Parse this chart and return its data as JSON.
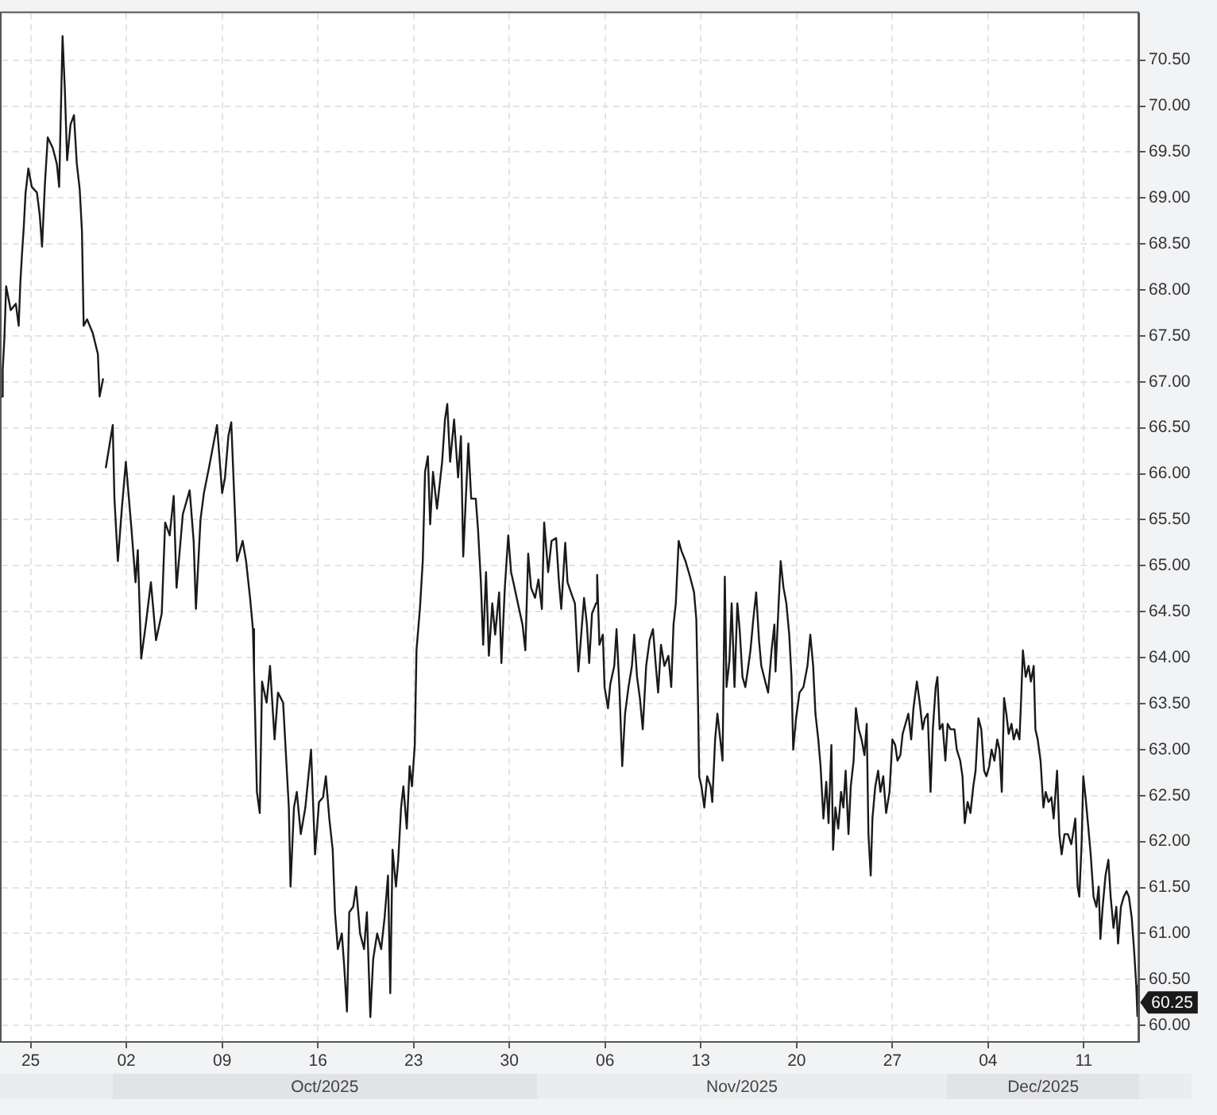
{
  "chart_data": {
    "type": "line",
    "x": [
      "2025-09-22T22:00",
      "2025-09-22T23:00",
      "2025-09-23T02:00",
      "2025-09-23T05:00",
      "2025-09-23T13:00",
      "2025-09-23T22:00",
      "2025-09-24T03:00",
      "2025-09-24T06:00",
      "2025-09-24T09:00",
      "2025-09-24T12:00",
      "2025-09-24T15:00",
      "2025-09-24T20:00",
      "2025-09-25T02:00",
      "2025-09-25T11:00",
      "2025-09-25T16:00",
      "2025-09-25T20:00",
      "2025-09-26T01:00",
      "2025-09-26T06:00",
      "2025-09-26T15:00",
      "2025-09-26T22:00",
      "2025-09-27T02:00",
      "2025-09-27T08:00",
      "2025-09-27T12:00",
      "2025-09-27T16:00",
      "2025-09-27T22:00",
      "2025-09-28T04:00",
      "2025-09-28T09:00",
      "2025-09-28T14:00",
      "2025-09-28T18:00",
      "2025-09-28T21:00",
      "2025-09-29T03:00",
      "2025-09-29T13:00",
      "2025-09-29T22:00",
      "2025-09-30T01:00",
      "2025-09-30T07:00",
      "2025-09-30T10:00",
      "2025-09-30T12:00",
      "2025-10-01T00:00",
      "2025-10-01T03:00",
      "2025-10-01T09:00",
      "2025-10-01T16:00",
      "2025-10-01T23:00",
      "2025-10-02T09:00",
      "2025-10-02T16:00",
      "2025-10-02T20:00",
      "2025-10-03T02:00",
      "2025-10-03T10:00",
      "2025-10-03T19:00",
      "2025-10-04T04:00",
      "2025-10-04T14:00",
      "2025-10-04T20:00",
      "2025-10-05T04:00",
      "2025-10-05T11:00",
      "2025-10-05T16:00",
      "2025-10-06T03:00",
      "2025-10-06T15:00",
      "2025-10-06T22:00",
      "2025-10-07T02:00",
      "2025-10-07T10:00",
      "2025-10-07T16:00",
      "2025-10-08T01:00",
      "2025-10-08T08:00",
      "2025-10-08T15:00",
      "2025-10-09T00:00",
      "2025-10-09T05:00",
      "2025-10-09T11:00",
      "2025-10-09T16:00",
      "2025-10-09T21:00",
      "2025-10-10T02:00",
      "2025-10-10T12:00",
      "2025-10-10T18:00",
      "2025-10-11T01:00",
      "2025-10-11T06:00",
      "2025-10-11T08:00",
      "2025-10-11T13:00",
      "2025-10-11T18:00",
      "2025-10-11T22:00",
      "2025-10-12T06:00",
      "2025-10-12T12:00",
      "2025-10-12T20:00",
      "2025-10-13T02:00",
      "2025-10-13T11:00",
      "2025-10-13T16:00",
      "2025-10-13T21:00",
      "2025-10-14T00:00",
      "2025-10-14T06:00",
      "2025-10-14T11:00",
      "2025-10-14T18:00",
      "2025-10-15T02:00",
      "2025-10-15T12:00",
      "2025-10-15T19:00",
      "2025-10-16T02:00",
      "2025-10-16T09:00",
      "2025-10-16T14:00",
      "2025-10-16T20:00",
      "2025-10-17T02:00",
      "2025-10-17T06:00",
      "2025-10-17T11:00",
      "2025-10-17T18:00",
      "2025-10-17T22:00",
      "2025-10-18T03:00",
      "2025-10-18T07:00",
      "2025-10-18T14:00",
      "2025-10-18T19:00",
      "2025-10-19T02:00",
      "2025-10-19T09:00",
      "2025-10-19T14:00",
      "2025-10-19T20:00",
      "2025-10-20T01:00",
      "2025-10-20T08:00",
      "2025-10-20T15:00",
      "2025-10-20T21:00",
      "2025-10-21T03:00",
      "2025-10-21T07:00",
      "2025-10-21T11:00",
      "2025-10-21T17:00",
      "2025-10-21T21:00",
      "2025-10-22T02:00",
      "2025-10-22T06:00",
      "2025-10-22T12:00",
      "2025-10-22T17:00",
      "2025-10-22T21:00",
      "2025-10-23T02:00",
      "2025-10-23T05:00",
      "2025-10-23T11:00",
      "2025-10-23T16:00",
      "2025-10-23T20:00",
      "2025-10-24T01:00",
      "2025-10-24T05:00",
      "2025-10-24T10:00",
      "2025-10-24T17:00",
      "2025-10-25T02:00",
      "2025-10-25T07:00",
      "2025-10-25T11:00",
      "2025-10-25T16:00",
      "2025-10-25T23:00",
      "2025-10-26T06:00",
      "2025-10-26T11:00",
      "2025-10-26T15:00",
      "2025-10-26T20:00",
      "2025-10-27T00:00",
      "2025-10-27T05:00",
      "2025-10-27T13:00",
      "2025-10-27T17:00",
      "2025-10-27T22:00",
      "2025-10-28T02:00",
      "2025-10-28T07:00",
      "2025-10-28T12:00",
      "2025-10-28T18:00",
      "2025-10-28T23:00",
      "2025-10-29T06:00",
      "2025-10-29T10:00",
      "2025-10-29T16:00",
      "2025-10-29T22:00",
      "2025-10-30T03:00",
      "2025-10-30T07:00",
      "2025-10-30T17:00",
      "2025-10-30T23:00",
      "2025-10-31T04:00",
      "2025-10-31T09:00",
      "2025-10-31T14:00",
      "2025-10-31T21:00",
      "2025-11-01T03:00",
      "2025-11-01T09:00",
      "2025-11-01T13:00",
      "2025-11-01T20:00",
      "2025-11-02T02:00",
      "2025-11-02T10:00",
      "2025-11-02T15:00",
      "2025-11-02T19:00",
      "2025-11-03T02:00",
      "2025-11-03T06:00",
      "2025-11-03T12:00",
      "2025-11-03T19:00",
      "2025-11-04T01:00",
      "2025-11-04T06:00",
      "2025-11-04T11:00",
      "2025-11-04T16:00",
      "2025-11-04T20:00",
      "2025-11-05T01:00",
      "2025-11-05T08:00",
      "2025-11-05T10:00",
      "2025-11-05T14:00",
      "2025-11-05T20:00",
      "2025-11-05T23:00",
      "2025-11-06T05:00",
      "2025-11-06T09:00",
      "2025-11-06T16:00",
      "2025-11-06T20:00",
      "2025-11-07T01:00",
      "2025-11-07T06:00",
      "2025-11-07T11:00",
      "2025-11-07T17:00",
      "2025-11-07T23:00",
      "2025-11-08T03:00",
      "2025-11-08T08:00",
      "2025-11-08T13:00",
      "2025-11-08T18:00",
      "2025-11-09T00:00",
      "2025-11-09T06:00",
      "2025-11-09T12:00",
      "2025-11-09T17:00",
      "2025-11-09T21:00",
      "2025-11-10T02:00",
      "2025-11-10T08:00",
      "2025-11-10T15:00",
      "2025-11-10T20:00",
      "2025-11-11T00:00",
      "2025-11-11T04:00",
      "2025-11-11T09:00",
      "2025-11-11T14:00",
      "2025-11-11T21:00",
      "2025-11-12T05:00",
      "2025-11-12T12:00",
      "2025-11-12T16:00",
      "2025-11-12T19:00",
      "2025-11-12T21:00",
      "2025-11-13T01:00",
      "2025-11-13T06:00",
      "2025-11-13T11:00",
      "2025-11-13T17:00",
      "2025-11-13T20:00",
      "2025-11-14T01:00",
      "2025-11-14T05:00",
      "2025-11-14T10:00",
      "2025-11-14T14:00",
      "2025-11-14T18:00",
      "2025-11-14T21:00",
      "2025-11-15T02:00",
      "2025-11-15T06:00",
      "2025-11-15T11:00",
      "2025-11-15T16:00",
      "2025-11-15T20:00",
      "2025-11-16T01:00",
      "2025-11-16T06:00",
      "2025-11-16T10:00",
      "2025-11-16T15:00",
      "2025-11-16T20:00",
      "2025-11-17T01:00",
      "2025-11-17T06:00",
      "2025-11-17T10:00",
      "2025-11-17T17:00",
      "2025-11-17T22:00",
      "2025-11-18T04:00",
      "2025-11-18T09:00",
      "2025-11-18T11:00",
      "2025-11-18T16:00",
      "2025-11-18T20:00",
      "2025-11-19T01:00",
      "2025-11-19T06:00",
      "2025-11-19T11:00",
      "2025-11-19T15:00",
      "2025-11-19T18:00",
      "2025-11-19T23:00",
      "2025-11-20T05:00",
      "2025-11-20T12:00",
      "2025-11-20T19:00",
      "2025-11-21T00:00",
      "2025-11-21T05:00",
      "2025-11-21T09:00",
      "2025-11-21T14:00",
      "2025-11-21T18:00",
      "2025-11-21T23:00",
      "2025-11-22T04:00",
      "2025-11-22T08:00",
      "2025-11-22T13:00",
      "2025-11-22T16:00",
      "2025-11-22T20:00",
      "2025-11-23T01:00",
      "2025-11-23T06:00",
      "2025-11-23T10:00",
      "2025-11-23T14:00",
      "2025-11-23T19:00",
      "2025-11-23T23:00",
      "2025-11-24T04:00",
      "2025-11-24T08:00",
      "2025-11-24T13:00",
      "2025-11-24T18:00",
      "2025-11-24T23:00",
      "2025-11-25T03:00",
      "2025-11-25T06:00",
      "2025-11-25T10:00",
      "2025-11-25T13:00",
      "2025-11-25T18:00",
      "2025-11-25T23:00",
      "2025-11-26T03:00",
      "2025-11-26T08:00",
      "2025-11-26T13:00",
      "2025-11-26T19:00",
      "2025-11-27T00:00",
      "2025-11-27T05:00",
      "2025-11-27T09:00",
      "2025-11-27T14:00",
      "2025-11-27T18:00",
      "2025-11-27T23:00",
      "2025-11-28T04:00",
      "2025-11-28T09:00",
      "2025-11-28T13:00",
      "2025-11-28T19:00",
      "2025-11-29T00:00",
      "2025-11-29T05:00",
      "2025-11-29T09:00",
      "2025-11-29T14:00",
      "2025-11-29T19:00",
      "2025-11-29T23:00",
      "2025-11-30T04:00",
      "2025-11-30T07:00",
      "2025-11-30T11:00",
      "2025-11-30T16:00",
      "2025-11-30T21:00",
      "2025-12-01T01:00",
      "2025-12-01T06:00",
      "2025-12-01T13:00",
      "2025-12-01T17:00",
      "2025-12-01T23:00",
      "2025-12-02T03:00",
      "2025-12-02T07:00",
      "2025-12-02T12:00",
      "2025-12-02T17:00",
      "2025-12-02T22:00",
      "2025-12-03T02:00",
      "2025-12-03T07:00",
      "2025-12-03T12:00",
      "2025-12-03T17:00",
      "2025-12-03T21:00",
      "2025-12-04T02:00",
      "2025-12-04T06:00",
      "2025-12-04T11:00",
      "2025-12-04T16:00",
      "2025-12-04T20:00",
      "2025-12-05T00:00",
      "2025-12-05T04:00",
      "2025-12-05T08:00",
      "2025-12-05T12:00",
      "2025-12-05T17:00",
      "2025-12-05T21:00",
      "2025-12-06T02:00",
      "2025-12-06T07:00",
      "2025-12-06T10:00",
      "2025-12-06T13:00",
      "2025-12-06T18:00",
      "2025-12-06T23:00",
      "2025-12-07T03:00",
      "2025-12-07T08:00",
      "2025-12-07T11:00",
      "2025-12-07T15:00",
      "2025-12-07T20:00",
      "2025-12-08T01:00",
      "2025-12-08T05:00",
      "2025-12-08T10:00",
      "2025-12-08T15:00",
      "2025-12-08T19:00",
      "2025-12-09T01:00",
      "2025-12-09T05:00",
      "2025-12-09T09:00",
      "2025-12-09T14:00",
      "2025-12-09T20:00",
      "2025-12-10T02:00",
      "2025-12-10T09:00",
      "2025-12-10T13:00",
      "2025-12-10T16:00",
      "2025-12-10T20:00",
      "2025-12-10T23:00",
      "2025-12-11T03:00",
      "2025-12-11T08:00",
      "2025-12-11T12:00",
      "2025-12-11T17:00",
      "2025-12-11T22:00",
      "2025-12-12T02:00",
      "2025-12-12T05:00",
      "2025-12-12T09:00",
      "2025-12-12T14:00",
      "2025-12-12T19:00",
      "2025-12-12T23:00",
      "2025-12-13T04:00",
      "2025-12-13T09:00",
      "2025-12-13T12:00",
      "2025-12-13T17:00",
      "2025-12-13T22:00",
      "2025-12-14T03:00",
      "2025-12-14T07:00",
      "2025-12-14T12:00",
      "2025-12-14T16:00",
      "2025-12-14T20:00",
      "2025-12-14T22:00",
      "2025-12-15T00:00"
    ],
    "values": [
      66.84,
      67.13,
      67.49,
      68.04,
      67.78,
      67.85,
      67.61,
      68.09,
      68.41,
      68.69,
      69.05,
      69.32,
      69.12,
      69.06,
      68.81,
      68.47,
      69.15,
      69.66,
      69.54,
      69.37,
      69.12,
      70.76,
      70.18,
      69.41,
      69.8,
      69.9,
      69.37,
      69.1,
      68.64,
      67.61,
      67.68,
      67.53,
      67.3,
      66.84,
      67.03,
      null,
      66.07,
      66.53,
      65.73,
      65.05,
      65.62,
      66.13,
      65.39,
      64.82,
      65.17,
      63.99,
      64.36,
      64.82,
      64.19,
      64.48,
      65.47,
      65.33,
      65.76,
      64.76,
      65.56,
      65.82,
      65.27,
      64.53,
      65.5,
      65.79,
      66.07,
      66.3,
      66.53,
      65.79,
      65.96,
      66.41,
      66.56,
      65.79,
      65.05,
      65.27,
      65.05,
      64.65,
      64.31,
      63.85,
      62.54,
      62.31,
      63.74,
      63.51,
      63.91,
      63.11,
      63.62,
      63.51,
      62.94,
      62.37,
      61.51,
      62.37,
      62.54,
      62.08,
      62.37,
      63.0,
      61.86,
      62.43,
      62.48,
      62.71,
      62.25,
      61.91,
      61.23,
      60.83,
      61.0,
      60.66,
      60.15,
      61.23,
      61.29,
      61.51,
      61.0,
      60.83,
      61.23,
      60.09,
      60.72,
      61.0,
      60.83,
      61.17,
      61.63,
      60.35,
      61.91,
      61.51,
      61.8,
      62.37,
      62.6,
      62.14,
      62.82,
      62.6,
      63.05,
      64.08,
      64.53,
      65.05,
      66.02,
      66.19,
      65.45,
      66.02,
      65.62,
      66.13,
      66.59,
      66.76,
      66.13,
      66.59,
      65.96,
      66.41,
      65.1,
      65.79,
      66.33,
      65.73,
      65.73,
      65.39,
      64.82,
      64.14,
      64.93,
      64.02,
      64.59,
      64.25,
      64.71,
      63.94,
      64.76,
      65.33,
      64.93,
      64.82,
      64.53,
      64.36,
      64.08,
      65.13,
      64.76,
      64.65,
      64.85,
      64.53,
      65.47,
      64.93,
      65.27,
      65.3,
      64.82,
      64.53,
      65.25,
      64.82,
      64.71,
      64.59,
      63.85,
      64.25,
      64.65,
      64.36,
      63.94,
      64.48,
      64.59,
      64.9,
      64.14,
      64.25,
      63.68,
      63.45,
      63.71,
      63.91,
      64.31,
      63.68,
      62.82,
      63.39,
      63.68,
      63.91,
      64.25,
      63.79,
      63.56,
      63.22,
      63.91,
      64.19,
      64.31,
      63.91,
      63.62,
      64.14,
      63.91,
      64.02,
      63.68,
      64.36,
      64.59,
      65.27,
      65.16,
      65.05,
      64.88,
      64.71,
      64.42,
      63.51,
      62.71,
      62.6,
      62.37,
      62.71,
      62.6,
      62.43,
      63.11,
      63.39,
      63.11,
      62.88,
      64.88,
      63.68,
      63.96,
      64.59,
      63.68,
      64.59,
      64.31,
      63.79,
      63.68,
      63.85,
      64.08,
      64.42,
      64.71,
      64.19,
      63.91,
      63.74,
      63.62,
      64.08,
      64.36,
      63.85,
      64.53,
      65.05,
      64.76,
      64.59,
      64.25,
      63.79,
      63.0,
      63.34,
      63.62,
      63.68,
      63.91,
      64.25,
      63.91,
      63.39,
      63.11,
      62.82,
      62.25,
      62.65,
      62.2,
      63.05,
      61.91,
      62.37,
      62.14,
      62.54,
      62.37,
      62.77,
      62.08,
      62.6,
      62.88,
      63.45,
      63.22,
      63.11,
      62.94,
      63.28,
      62.08,
      61.63,
      62.25,
      62.6,
      62.77,
      62.54,
      62.71,
      62.31,
      62.54,
      63.11,
      63.05,
      62.88,
      62.94,
      63.17,
      63.28,
      63.39,
      63.11,
      63.45,
      63.74,
      63.51,
      63.22,
      63.34,
      63.39,
      62.54,
      63.22,
      63.68,
      63.79,
      63.22,
      63.28,
      62.88,
      63.28,
      63.22,
      63.22,
      63.0,
      62.88,
      62.71,
      62.2,
      62.43,
      62.31,
      62.6,
      62.77,
      63.34,
      63.22,
      62.77,
      62.71,
      62.82,
      63.0,
      62.88,
      63.11,
      63.0,
      62.54,
      63.56,
      63.39,
      63.17,
      63.28,
      63.11,
      63.22,
      63.11,
      63.56,
      64.08,
      63.79,
      63.91,
      63.74,
      63.91,
      63.22,
      63.11,
      62.88,
      62.37,
      62.54,
      62.43,
      62.48,
      62.25,
      62.77,
      62.08,
      61.86,
      62.08,
      62.08,
      61.97,
      62.25,
      61.51,
      61.4,
      61.97,
      62.71,
      62.48,
      62.14,
      61.86,
      61.4,
      61.29,
      61.51,
      60.94,
      61.29,
      61.63,
      61.8,
      61.4,
      61.06,
      61.29,
      60.89,
      61.29,
      61.4,
      61.46,
      61.4,
      61.17,
      60.83,
      60.43,
      60.1,
      60.25
    ],
    "color": "#1a1a1a",
    "xlim": [
      "2025-09-22T21:00",
      "2025-12-15T01:00"
    ],
    "xticks": [
      {
        "value": "2025-09-25",
        "label": "25"
      },
      {
        "value": "2025-10-02",
        "label": "02"
      },
      {
        "value": "2025-10-09",
        "label": "09"
      },
      {
        "value": "2025-10-16",
        "label": "16"
      },
      {
        "value": "2025-10-23",
        "label": "23"
      },
      {
        "value": "2025-10-30",
        "label": "30"
      },
      {
        "value": "2025-11-06",
        "label": "06"
      },
      {
        "value": "2025-11-13",
        "label": "13"
      },
      {
        "value": "2025-11-20",
        "label": "20"
      },
      {
        "value": "2025-11-27",
        "label": "27"
      },
      {
        "value": "2025-12-04",
        "label": "04"
      },
      {
        "value": "2025-12-11",
        "label": "11"
      }
    ],
    "ylim": [
      59.82,
      71.01
    ],
    "yticks": [
      {
        "value": 60,
        "label": "60.00"
      },
      {
        "value": 60.5,
        "label": "60.50"
      },
      {
        "value": 61,
        "label": "61.00"
      },
      {
        "value": 61.5,
        "label": "61.50"
      },
      {
        "value": 62,
        "label": "62.00"
      },
      {
        "value": 62.5,
        "label": "62.50"
      },
      {
        "value": 63,
        "label": "63.00"
      },
      {
        "value": 63.5,
        "label": "63.50"
      },
      {
        "value": 64,
        "label": "64.00"
      },
      {
        "value": 64.5,
        "label": "64.50"
      },
      {
        "value": 65,
        "label": "65.00"
      },
      {
        "value": 65.5,
        "label": "65.50"
      },
      {
        "value": 66,
        "label": "66.00"
      },
      {
        "value": 66.5,
        "label": "66.50"
      },
      {
        "value": 67,
        "label": "67.00"
      },
      {
        "value": 67.5,
        "label": "67.50"
      },
      {
        "value": 68,
        "label": "68.00"
      },
      {
        "value": 68.5,
        "label": "68.50"
      },
      {
        "value": 69,
        "label": "69.00"
      },
      {
        "value": 69.5,
        "label": "69.50"
      },
      {
        "value": 70,
        "label": "70.00"
      },
      {
        "value": 70.5,
        "label": "70.50"
      }
    ],
    "grid": true,
    "legend": false,
    "marker": "none",
    "line_style": "solid",
    "annotations": [
      "Oct/2025",
      "Nov/2025",
      "Dec/2025",
      {
        "text": "60.25",
        "x": "2025-12-15T00:00",
        "y": 60.25
      }
    ]
  }
}
